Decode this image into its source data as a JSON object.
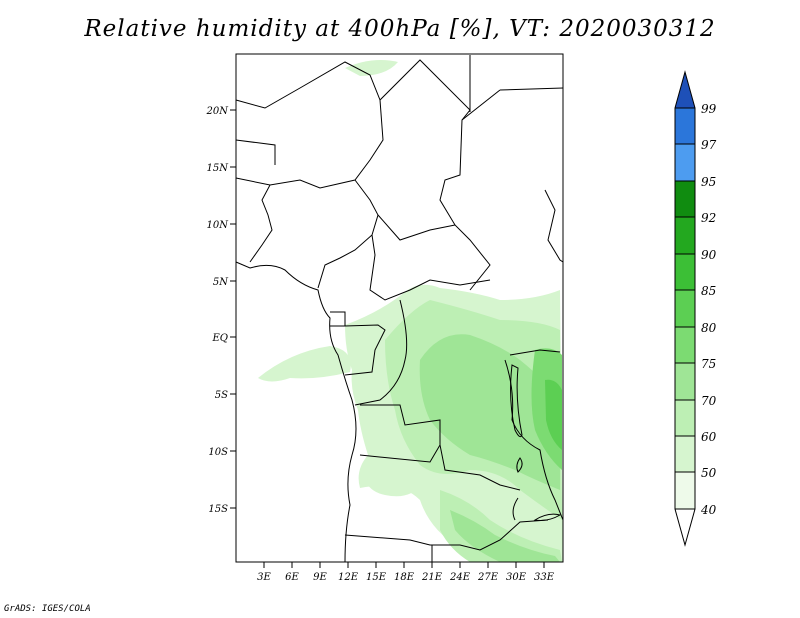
{
  "title": "Relative humidity at 400hPa [%], VT: 2020030312",
  "credit": "GrADS: IGES/COLA",
  "map": {
    "lon_range": [
      0,
      35
    ],
    "lat_range": [
      -20,
      25
    ],
    "lon_ticks": [
      "3E",
      "6E",
      "9E",
      "12E",
      "15E",
      "18E",
      "21E",
      "24E",
      "27E",
      "30E",
      "33E"
    ],
    "lat_ticks": [
      "20N",
      "15N",
      "10N",
      "5N",
      "EQ",
      "5S",
      "10S",
      "15S"
    ]
  },
  "colorbar": {
    "labels": [
      "40",
      "50",
      "60",
      "70",
      "75",
      "80",
      "85",
      "90",
      "92",
      "95",
      "97",
      "99"
    ],
    "colors": {
      "c40_50": "#eefaea",
      "c50_60": "#d6f5cf",
      "c60_70": "#bdefb4",
      "c70_75": "#9fe596",
      "c75_80": "#7cdb72",
      "c80_85": "#5ccf53",
      "c85_90": "#3cbf36",
      "c90_92": "#23a81f",
      "c92_95": "#108c10",
      "c95_97": "#4d9cf0",
      "c97_99": "#2b76da",
      "c99_up": "#1e50b8"
    }
  }
}
